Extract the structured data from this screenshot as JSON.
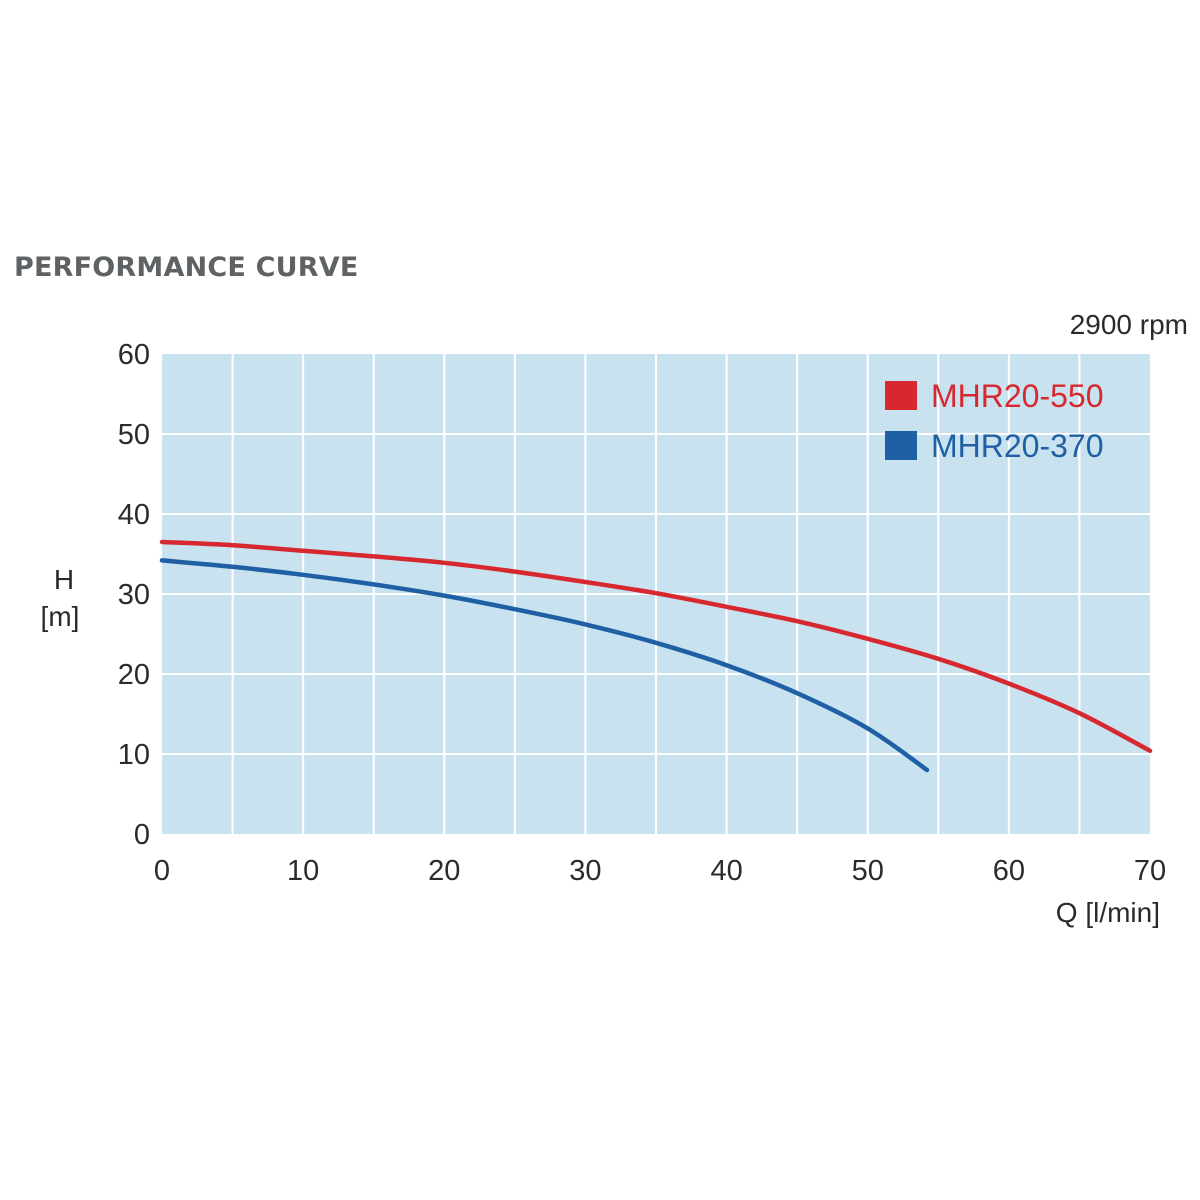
{
  "colors": {
    "plot_background": "#c9e2ef",
    "grid": "#ffffff",
    "text": "#2b2b2b",
    "title": "#5f6264"
  },
  "chart_data": {
    "type": "line",
    "title": "PERFORMANCE CURVE",
    "subtitle": "2900 rpm",
    "xlabel": "Q [l/min]",
    "ylabel_line1": "H",
    "ylabel_line2": "[m]",
    "xlim": [
      0,
      70
    ],
    "ylim": [
      0,
      60
    ],
    "x_ticks": [
      0,
      10,
      20,
      30,
      40,
      50,
      60,
      70
    ],
    "y_ticks": [
      0,
      10,
      20,
      30,
      40,
      50,
      60
    ],
    "x_grid_step": 5,
    "y_grid_step": 10,
    "grid": true,
    "legend_position": "top-right",
    "series": [
      {
        "name": "MHR20-550",
        "color": "#d7282f",
        "x": [
          0,
          5,
          10,
          15,
          20,
          25,
          30,
          35,
          40,
          45,
          50,
          55,
          60,
          65,
          70
        ],
        "y": [
          36.5,
          36.1,
          35.4,
          34.7,
          33.9,
          32.8,
          31.5,
          30.1,
          28.4,
          26.6,
          24.4,
          21.9,
          18.8,
          15.1,
          10.4
        ]
      },
      {
        "name": "MHR20-370",
        "color": "#1f5fa3",
        "x": [
          0,
          5,
          10,
          15,
          20,
          25,
          30,
          35,
          40,
          45,
          50,
          54.2
        ],
        "y": [
          34.2,
          33.4,
          32.4,
          31.2,
          29.8,
          28.1,
          26.2,
          23.9,
          21.1,
          17.6,
          13.2,
          8.0
        ]
      }
    ]
  }
}
